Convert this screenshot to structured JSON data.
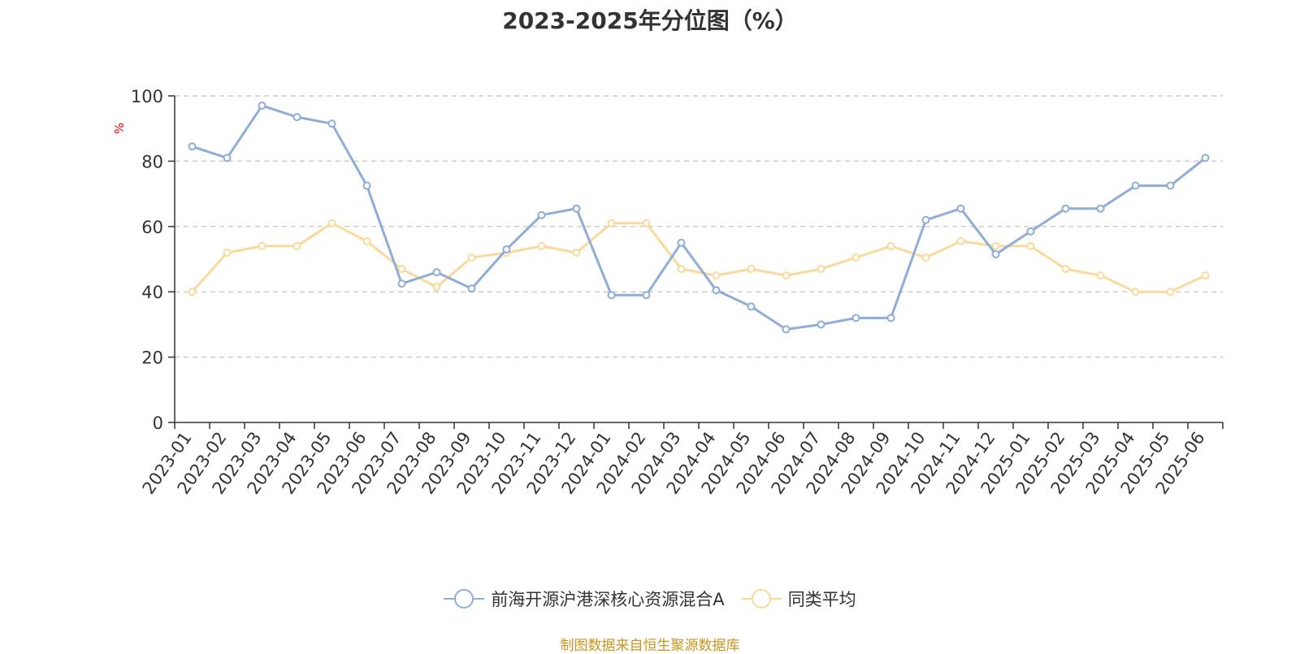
{
  "chart_data": {
    "type": "line",
    "title": "2023-2025年分位图（%）",
    "ylabel": "%",
    "ylim": [
      0,
      100
    ],
    "yticks": [
      0,
      20,
      40,
      60,
      80,
      100
    ],
    "grid": "horizontal dashed",
    "legend_position": "bottom-center",
    "categories": [
      "2023-01",
      "2023-02",
      "2023-03",
      "2023-04",
      "2023-05",
      "2023-06",
      "2023-07",
      "2023-08",
      "2023-09",
      "2023-10",
      "2023-11",
      "2023-12",
      "2024-01",
      "2024-02",
      "2024-03",
      "2024-04",
      "2024-05",
      "2024-06",
      "2024-07",
      "2024-08",
      "2024-09",
      "2024-10",
      "2024-11",
      "2024-12",
      "2025-01",
      "2025-02",
      "2025-03",
      "2025-04",
      "2025-05",
      "2025-06"
    ],
    "series": [
      {
        "name": "前海开源沪港深核心资源混合A",
        "color": "#8eadd9",
        "values": [
          84.5,
          81,
          97,
          93.5,
          91.5,
          72.5,
          42.5,
          46,
          41,
          53,
          63.5,
          65.5,
          39,
          39,
          55,
          40.5,
          35.5,
          28.5,
          30,
          32,
          32,
          62,
          65.5,
          51.5,
          58.5,
          65.5,
          65.5,
          72.5,
          72.5,
          81
        ]
      },
      {
        "name": "同类平均",
        "color": "#fbd99b",
        "values": [
          40,
          52,
          54,
          54,
          61,
          55.5,
          47,
          41.5,
          50.5,
          52,
          54,
          52,
          61,
          61,
          47,
          45,
          47,
          45,
          47,
          50.5,
          54,
          50.5,
          55.5,
          54,
          54,
          47,
          45,
          40,
          40,
          45
        ]
      }
    ]
  },
  "footer": {
    "source": "制图数据来自恒生聚源数据库"
  }
}
